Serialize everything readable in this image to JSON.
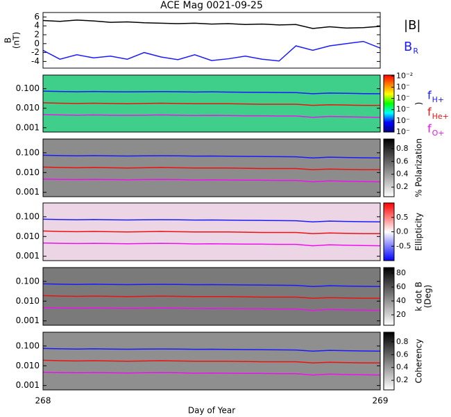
{
  "chart_data": [
    {
      "type": "line",
      "title": "ACE Mag 0021-09-25",
      "ylabel": [
        "B",
        "(nT)"
      ],
      "x": [
        268,
        268.05,
        268.1,
        268.15,
        268.2,
        268.25,
        268.3,
        268.35,
        268.4,
        268.45,
        268.5,
        268.55,
        268.6,
        268.65,
        268.7,
        268.75,
        268.8,
        268.85,
        268.9,
        268.95,
        269
      ],
      "xlim": [
        268,
        269
      ],
      "ylim": [
        -5.5,
        7
      ],
      "yticks": [
        6,
        4,
        2,
        0,
        -2,
        -4
      ],
      "series": [
        {
          "name": "|B|",
          "color": "#000000",
          "values": [
            5.2,
            5.0,
            5.3,
            5.1,
            4.8,
            4.9,
            4.7,
            4.6,
            4.5,
            4.6,
            4.4,
            4.5,
            4.3,
            4.4,
            4.2,
            4.3,
            3.4,
            3.8,
            3.5,
            3.6,
            3.9
          ]
        },
        {
          "name": "B",
          "name_sub": "R",
          "color": "#1a1aff",
          "values": [
            -1.5,
            -3.5,
            -2.5,
            -3.2,
            -2.8,
            -3.5,
            -2.0,
            -3.0,
            -3.6,
            -2.5,
            -3.8,
            -3.4,
            -2.8,
            -3.5,
            -3.9,
            -0.5,
            -1.5,
            -0.5,
            0.0,
            0.5,
            -1.0
          ]
        }
      ]
    },
    {
      "type": "line",
      "ylog": true,
      "legend": true,
      "x": [
        268,
        268.05,
        268.1,
        268.15,
        268.2,
        268.25,
        268.3,
        268.35,
        268.4,
        268.45,
        268.5,
        268.55,
        268.6,
        268.65,
        268.7,
        268.75,
        268.8,
        268.85,
        268.9,
        268.95,
        269
      ],
      "xlim": [
        268,
        269
      ],
      "ylim": [
        0.0006,
        0.5
      ],
      "yticks": [
        {
          "value": 0.1,
          "label": "0.100"
        },
        {
          "value": 0.01,
          "label": "0.010"
        },
        0.001
      ],
      "series": [
        {
          "name": "f",
          "name_sub": "H+",
          "color": "#1a1aff",
          "values": [
            0.075,
            0.072,
            0.07,
            0.072,
            0.07,
            0.069,
            0.07,
            0.071,
            0.07,
            0.068,
            0.069,
            0.067,
            0.066,
            0.065,
            0.064,
            0.063,
            0.055,
            0.06,
            0.058,
            0.056,
            0.055
          ]
        },
        {
          "name": "f",
          "name_sub": "He+",
          "color": "#ee1111",
          "values": [
            0.019,
            0.018,
            0.0175,
            0.018,
            0.0175,
            0.017,
            0.0175,
            0.018,
            0.0175,
            0.017,
            0.017,
            0.017,
            0.0165,
            0.016,
            0.016,
            0.016,
            0.014,
            0.015,
            0.0145,
            0.014,
            0.014
          ]
        },
        {
          "name": "f",
          "name_sub": "O+",
          "color": "#ee11ee",
          "values": [
            0.0047,
            0.0045,
            0.0044,
            0.0045,
            0.0044,
            0.0043,
            0.0044,
            0.0045,
            0.0044,
            0.0042,
            0.0043,
            0.0042,
            0.0041,
            0.0041,
            0.004,
            0.004,
            0.0034,
            0.0038,
            0.0036,
            0.0035,
            0.0034
          ]
        }
      ],
      "colorbar": {
        "label": ")",
        "log": true,
        "lim": [
          1e-07,
          0.012
        ],
        "ticks": [
          {
            "value": 0.01,
            "label": "10⁻²"
          },
          {
            "value": 0.001,
            "label": "10⁻"
          },
          {
            "value": 0.0001,
            "label": "10⁻"
          },
          {
            "value": 1e-05,
            "label": "10⁻"
          },
          {
            "value": 1e-06,
            "label": "10⁻"
          },
          {
            "value": 1e-07,
            "label": "10⁻"
          }
        ],
        "colors": [
          "#000080",
          "#0000ff",
          "#00ffff",
          "#00ff00",
          "#ffff00",
          "#ff8000",
          "#ff0000"
        ]
      }
    },
    {
      "type": "line",
      "ylog": true,
      "x": [
        268,
        268.05,
        268.1,
        268.15,
        268.2,
        268.25,
        268.3,
        268.35,
        268.4,
        268.45,
        268.5,
        268.55,
        268.6,
        268.65,
        268.7,
        268.75,
        268.8,
        268.85,
        268.9,
        268.95,
        269
      ],
      "xlim": [
        268,
        269
      ],
      "ylim": [
        0.0006,
        0.5
      ],
      "yticks": [
        {
          "value": 0.1,
          "label": "0.100"
        },
        {
          "value": 0.01,
          "label": "0.010"
        },
        0.001
      ],
      "series": [
        {
          "color": "#1a1aff",
          "values": [
            0.075,
            0.072,
            0.07,
            0.072,
            0.07,
            0.069,
            0.07,
            0.071,
            0.07,
            0.068,
            0.069,
            0.067,
            0.066,
            0.065,
            0.064,
            0.063,
            0.055,
            0.06,
            0.058,
            0.056,
            0.055
          ]
        },
        {
          "color": "#ee1111",
          "values": [
            0.019,
            0.018,
            0.0175,
            0.018,
            0.0175,
            0.017,
            0.0175,
            0.018,
            0.0175,
            0.017,
            0.017,
            0.017,
            0.0165,
            0.016,
            0.016,
            0.016,
            0.014,
            0.015,
            0.0145,
            0.014,
            0.014
          ]
        },
        {
          "color": "#ee11ee",
          "values": [
            0.0047,
            0.0045,
            0.0044,
            0.0045,
            0.0044,
            0.0043,
            0.0044,
            0.0045,
            0.0044,
            0.0042,
            0.0043,
            0.0042,
            0.0041,
            0.0041,
            0.004,
            0.004,
            0.0034,
            0.0038,
            0.0036,
            0.0035,
            0.0034
          ]
        }
      ],
      "colorbar": {
        "label": "% Polarization",
        "lim": [
          0.05,
          0.95
        ],
        "ticks": [
          0.2,
          0.4,
          0.6,
          0.8
        ],
        "colors": [
          "#ffffff",
          "#000000"
        ]
      }
    },
    {
      "type": "line",
      "ylog": true,
      "x": [
        268,
        268.05,
        268.1,
        268.15,
        268.2,
        268.25,
        268.3,
        268.35,
        268.4,
        268.45,
        268.5,
        268.55,
        268.6,
        268.65,
        268.7,
        268.75,
        268.8,
        268.85,
        268.9,
        268.95,
        269
      ],
      "xlim": [
        268,
        269
      ],
      "ylim": [
        0.0006,
        0.5
      ],
      "yticks": [
        {
          "value": 0.1,
          "label": "0.100"
        },
        {
          "value": 0.01,
          "label": "0.010"
        },
        0.001
      ],
      "series": [
        {
          "color": "#1a1aff",
          "values": [
            0.075,
            0.072,
            0.07,
            0.072,
            0.07,
            0.069,
            0.07,
            0.071,
            0.07,
            0.068,
            0.069,
            0.067,
            0.066,
            0.065,
            0.064,
            0.063,
            0.055,
            0.06,
            0.058,
            0.056,
            0.055
          ]
        },
        {
          "color": "#ee1111",
          "values": [
            0.019,
            0.018,
            0.0175,
            0.018,
            0.0175,
            0.017,
            0.0175,
            0.018,
            0.0175,
            0.017,
            0.017,
            0.017,
            0.0165,
            0.016,
            0.016,
            0.016,
            0.014,
            0.015,
            0.0145,
            0.014,
            0.014
          ]
        },
        {
          "color": "#ee11ee",
          "values": [
            0.0047,
            0.0045,
            0.0044,
            0.0045,
            0.0044,
            0.0043,
            0.0044,
            0.0045,
            0.0044,
            0.0042,
            0.0043,
            0.0042,
            0.0041,
            0.0041,
            0.004,
            0.004,
            0.0034,
            0.0038,
            0.0036,
            0.0035,
            0.0034
          ]
        }
      ],
      "colorbar": {
        "label": "Ellipticity",
        "lim": [
          -1,
          1
        ],
        "ticks": [
          0.5,
          {
            "value": 0,
            "label": "0.0"
          },
          -0.5
        ],
        "colors": [
          "#0000ff",
          "#ffffff",
          "#ff0000"
        ]
      }
    },
    {
      "type": "line",
      "ylog": true,
      "x": [
        268,
        268.05,
        268.1,
        268.15,
        268.2,
        268.25,
        268.3,
        268.35,
        268.4,
        268.45,
        268.5,
        268.55,
        268.6,
        268.65,
        268.7,
        268.75,
        268.8,
        268.85,
        268.9,
        268.95,
        269
      ],
      "xlim": [
        268,
        269
      ],
      "ylim": [
        0.0006,
        0.5
      ],
      "yticks": [
        {
          "value": 0.1,
          "label": "0.100"
        },
        {
          "value": 0.01,
          "label": "0.010"
        },
        0.001
      ],
      "series": [
        {
          "color": "#1a1aff",
          "values": [
            0.075,
            0.072,
            0.07,
            0.072,
            0.07,
            0.069,
            0.07,
            0.071,
            0.07,
            0.068,
            0.069,
            0.067,
            0.066,
            0.065,
            0.064,
            0.063,
            0.055,
            0.06,
            0.058,
            0.056,
            0.055
          ]
        },
        {
          "color": "#ee1111",
          "values": [
            0.019,
            0.018,
            0.0175,
            0.018,
            0.0175,
            0.017,
            0.0175,
            0.018,
            0.0175,
            0.017,
            0.017,
            0.017,
            0.0165,
            0.016,
            0.016,
            0.016,
            0.014,
            0.015,
            0.0145,
            0.014,
            0.014
          ]
        },
        {
          "color": "#ee11ee",
          "values": [
            0.0047,
            0.0045,
            0.0044,
            0.0045,
            0.0044,
            0.0043,
            0.0044,
            0.0045,
            0.0044,
            0.0042,
            0.0043,
            0.0042,
            0.0041,
            0.0041,
            0.004,
            0.004,
            0.0034,
            0.0038,
            0.0036,
            0.0035,
            0.0034
          ]
        }
      ],
      "colorbar": {
        "label": [
          "k dot B",
          "(Deg)"
        ],
        "lim": [
          5,
          88
        ],
        "ticks": [
          20,
          40,
          60,
          80
        ],
        "colors": [
          "#ffffff",
          "#000000"
        ]
      }
    },
    {
      "type": "line",
      "ylog": true,
      "x": [
        268,
        268.05,
        268.1,
        268.15,
        268.2,
        268.25,
        268.3,
        268.35,
        268.4,
        268.45,
        268.5,
        268.55,
        268.6,
        268.65,
        268.7,
        268.75,
        268.8,
        268.85,
        268.9,
        268.95,
        269
      ],
      "xlim": [
        268,
        269
      ],
      "xticks": [
        268,
        269
      ],
      "xlabel": "Day of Year",
      "ylim": [
        0.0006,
        0.5
      ],
      "yticks": [
        {
          "value": 0.1,
          "label": "0.100"
        },
        {
          "value": 0.01,
          "label": "0.010"
        },
        0.001
      ],
      "series": [
        {
          "color": "#1a1aff",
          "values": [
            0.075,
            0.072,
            0.07,
            0.072,
            0.07,
            0.069,
            0.07,
            0.071,
            0.07,
            0.068,
            0.069,
            0.067,
            0.066,
            0.065,
            0.064,
            0.063,
            0.055,
            0.06,
            0.058,
            0.056,
            0.055
          ]
        },
        {
          "color": "#ee1111",
          "values": [
            0.019,
            0.018,
            0.0175,
            0.018,
            0.0175,
            0.017,
            0.0175,
            0.018,
            0.0175,
            0.017,
            0.017,
            0.017,
            0.0165,
            0.016,
            0.016,
            0.016,
            0.014,
            0.015,
            0.0145,
            0.014,
            0.014
          ]
        },
        {
          "color": "#ee11ee",
          "values": [
            0.0047,
            0.0045,
            0.0044,
            0.0045,
            0.0044,
            0.0043,
            0.0044,
            0.0045,
            0.0044,
            0.0042,
            0.0043,
            0.0042,
            0.0041,
            0.0041,
            0.004,
            0.004,
            0.0034,
            0.0038,
            0.0036,
            0.0035,
            0.0034
          ]
        }
      ],
      "colorbar": {
        "label": "Coherency",
        "lim": [
          0.05,
          0.95
        ],
        "ticks": [
          0.2,
          0.4,
          0.6,
          0.8
        ],
        "colors": [
          "#ffffff",
          "#000000"
        ]
      }
    }
  ]
}
